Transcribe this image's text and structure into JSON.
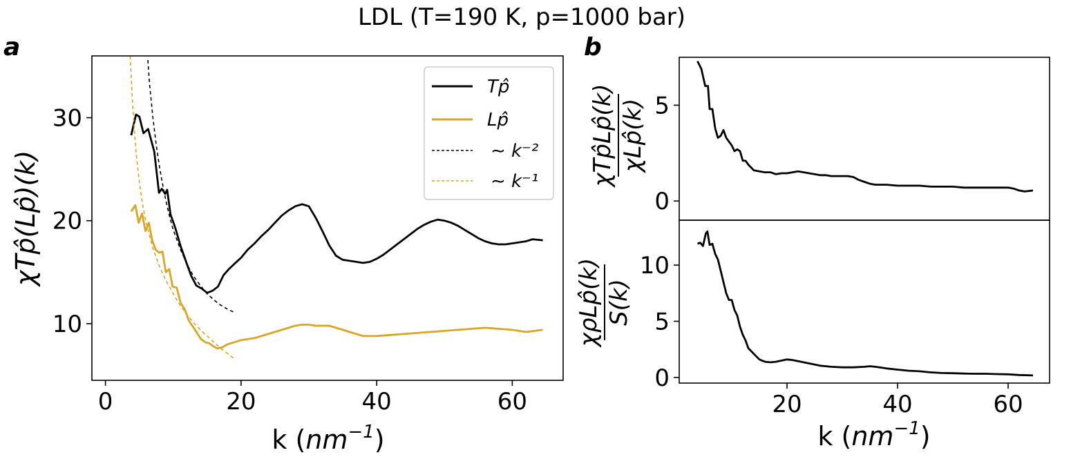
{
  "colors": {
    "black": "#000000",
    "gold": "#DAA520",
    "frame": "#000000"
  },
  "chart_data": [
    {
      "id": "a",
      "type": "line",
      "title": "LDL (T=190 K, p=1000 bar)",
      "panel_label": "a",
      "xlabel": "k (nm⁻¹)",
      "xlabel_main": "k (",
      "xlabel_unit": "nm",
      "xlabel_exp": "−1",
      "xlabel_close": ")",
      "ylabel": "χTp̂(Lp̂)(k)",
      "xlim": [
        -2,
        67.5
      ],
      "ylim": [
        4.5,
        36
      ],
      "xticks": [
        0,
        20,
        40,
        60
      ],
      "yticks": [
        10,
        20,
        30
      ],
      "xtick_labels": [
        "0",
        "20",
        "40",
        "60"
      ],
      "ytick_labels": [
        "10",
        "20",
        "30"
      ],
      "legend": {
        "position": "upper right",
        "entries": [
          {
            "label": "Tp̂",
            "series": "Tp"
          },
          {
            "label": "Lp̂",
            "series": "Lp"
          },
          {
            "label": "∼ k⁻²",
            "series": "fit_k2"
          },
          {
            "label": "∼ k⁻¹",
            "series": "fit_k1"
          }
        ]
      },
      "series": [
        {
          "name": "Tp̂",
          "key": "Tp",
          "color": "#000000",
          "style": "solid",
          "x": [
            3.8,
            4.5,
            5.0,
            5.6,
            6.3,
            7.2,
            7.9,
            8.3,
            8.8,
            9.1,
            9.6,
            10.3,
            11.1,
            11.9,
            12.6,
            13.4,
            14.2,
            15.0,
            15.8,
            16.6,
            17.4,
            18.2,
            19.0,
            20.0,
            21.0,
            22.0,
            23.0,
            24.0,
            25.0,
            26.0,
            27.0,
            28.0,
            29.0,
            30.0,
            31.0,
            32.0,
            33.0,
            34.0,
            35.0,
            36.0,
            37.0,
            38.0,
            39.0,
            40.0,
            41.0,
            42.0,
            43.0,
            44.0,
            45.0,
            46.0,
            47.0,
            48.0,
            49.0,
            50.0,
            51.0,
            52.0,
            53.0,
            54.0,
            55.0,
            56.0,
            57.0,
            58.0,
            59.0,
            60.0,
            61.0,
            62.0,
            63.0,
            64.5
          ],
          "y": [
            28.3,
            30.3,
            30.1,
            28.5,
            28.9,
            26.7,
            22.7,
            23.1,
            22.6,
            23.0,
            20.6,
            19.3,
            17.5,
            16.0,
            14.7,
            13.7,
            13.4,
            13.0,
            13.2,
            13.6,
            14.7,
            15.3,
            15.8,
            16.4,
            17.2,
            17.8,
            18.5,
            19.1,
            19.8,
            20.5,
            21.0,
            21.4,
            21.6,
            21.4,
            20.3,
            19.0,
            17.6,
            16.6,
            16.2,
            16.1,
            16.0,
            15.9,
            16.0,
            16.3,
            16.7,
            17.2,
            17.7,
            18.2,
            18.7,
            19.2,
            19.6,
            19.9,
            20.1,
            20.0,
            19.8,
            19.5,
            19.1,
            18.7,
            18.3,
            18.0,
            17.8,
            17.7,
            17.7,
            17.8,
            17.9,
            18.0,
            18.2,
            18.1
          ]
        },
        {
          "name": "Lp̂",
          "key": "Lp",
          "color": "#DAA520",
          "style": "solid",
          "x": [
            3.8,
            4.4,
            4.9,
            5.4,
            5.9,
            6.4,
            6.9,
            7.4,
            7.9,
            8.4,
            8.9,
            9.4,
            9.9,
            10.5,
            11.1,
            11.7,
            12.3,
            12.9,
            13.5,
            14.1,
            14.7,
            15.3,
            15.9,
            16.5,
            17.2,
            18.0,
            19.0,
            20.0,
            21.0,
            22.0,
            23.0,
            24.0,
            25.0,
            26.0,
            27.0,
            28.0,
            29.0,
            30.0,
            31.0,
            32.0,
            33.0,
            34.0,
            35.0,
            36.0,
            37.0,
            38.0,
            39.0,
            40.0,
            42.0,
            44.0,
            46.0,
            48.0,
            50.0,
            52.0,
            54.0,
            56.0,
            58.0,
            60.0,
            62.0,
            64.5
          ],
          "y": [
            20.9,
            21.5,
            19.8,
            20.7,
            19.0,
            19.8,
            18.1,
            17.2,
            16.9,
            17.0,
            15.0,
            15.3,
            13.6,
            13.5,
            12.0,
            11.4,
            10.3,
            9.7,
            9.1,
            8.5,
            8.2,
            8.1,
            7.8,
            7.6,
            7.7,
            8.0,
            8.2,
            8.4,
            8.5,
            8.6,
            8.8,
            9.0,
            9.2,
            9.4,
            9.6,
            9.8,
            9.9,
            9.9,
            9.8,
            9.8,
            9.8,
            9.6,
            9.4,
            9.2,
            9.0,
            8.8,
            8.8,
            8.8,
            8.9,
            9.0,
            9.1,
            9.2,
            9.3,
            9.4,
            9.5,
            9.6,
            9.5,
            9.4,
            9.2,
            9.4
          ]
        },
        {
          "name": "∼ k⁻²",
          "key": "fit_k2",
          "color": "#000000",
          "style": "dashed",
          "x": [
            6.25,
            6.5,
            7.0,
            7.5,
            8.0,
            8.5,
            9.0,
            9.5,
            10.0,
            11.0,
            12.0,
            13.0,
            14.0,
            15.0,
            16.0,
            17.0,
            18.0,
            19.0
          ],
          "y": [
            35.6,
            33.3,
            30.0,
            27.3,
            25.1,
            23.3,
            21.7,
            20.3,
            19.1,
            17.3,
            15.8,
            14.6,
            13.7,
            12.9,
            12.3,
            11.8,
            11.4,
            11.1
          ]
        },
        {
          "name": "∼ k⁻¹",
          "key": "fit_k1",
          "color": "#DAA520",
          "style": "dashed",
          "x": [
            3.65,
            4.0,
            4.5,
            5.0,
            5.5,
            6.0,
            7.0,
            8.0,
            9.0,
            10.0,
            11.0,
            12.0,
            13.0,
            14.0,
            15.0,
            16.0,
            17.0,
            18.0,
            19.0
          ],
          "y": [
            36.0,
            31.3,
            26.7,
            23.7,
            21.5,
            19.8,
            17.3,
            15.5,
            14.1,
            12.9,
            11.8,
            10.9,
            10.1,
            9.4,
            8.8,
            8.2,
            7.6,
            7.1,
            6.6
          ]
        }
      ]
    },
    {
      "id": "b_top",
      "type": "line",
      "panel_label": "b",
      "ylabel_num": "χTp̂Lp̂(k)",
      "ylabel_den": "χLp̂(k)",
      "xlim": [
        0.5,
        67.5
      ],
      "ylim": [
        -1.0,
        7.5
      ],
      "yticks": [
        0,
        5
      ],
      "ytick_labels": [
        "0",
        "5"
      ],
      "series": [
        {
          "name": "ratio_Tp_Lp",
          "color": "#000000",
          "style": "solid",
          "x": [
            3.8,
            4.5,
            5.2,
            5.7,
            6.0,
            6.5,
            7.0,
            7.5,
            8.0,
            8.5,
            9.0,
            9.5,
            10.0,
            10.5,
            11.0,
            11.5,
            12.0,
            12.5,
            13.0,
            14.0,
            15.0,
            16.0,
            17.0,
            18.0,
            19.0,
            20.0,
            21.0,
            22.0,
            23.0,
            24.0,
            25.0,
            26.0,
            27.0,
            28.0,
            29.0,
            30.0,
            31.0,
            32.0,
            33.0,
            34.0,
            35.0,
            36.0,
            37.0,
            38.0,
            40.0,
            42.0,
            44.0,
            46.0,
            48.0,
            50.0,
            52.0,
            54.0,
            56.0,
            58.0,
            60.0,
            61.0,
            62.0,
            63.0,
            64.5
          ],
          "y": [
            7.3,
            6.9,
            6.0,
            6.0,
            4.8,
            4.8,
            3.8,
            3.3,
            3.4,
            3.7,
            3.3,
            3.1,
            2.9,
            2.6,
            2.7,
            2.6,
            2.1,
            2.1,
            1.9,
            1.6,
            1.55,
            1.5,
            1.5,
            1.4,
            1.45,
            1.45,
            1.5,
            1.55,
            1.5,
            1.45,
            1.4,
            1.35,
            1.35,
            1.3,
            1.3,
            1.3,
            1.3,
            1.25,
            1.1,
            1.0,
            0.9,
            0.85,
            0.85,
            0.85,
            0.8,
            0.8,
            0.8,
            0.75,
            0.75,
            0.75,
            0.7,
            0.7,
            0.7,
            0.7,
            0.7,
            0.65,
            0.55,
            0.5,
            0.55
          ]
        }
      ]
    },
    {
      "id": "b_bottom",
      "type": "line",
      "xlabel": "k (nm⁻¹)",
      "xlabel_main": "k (",
      "xlabel_unit": "nm",
      "xlabel_exp": "−1",
      "xlabel_close": ")",
      "ylabel_num": "χρLp̂(k)",
      "ylabel_den": "S(k)",
      "xlim": [
        0.5,
        67.5
      ],
      "ylim": [
        -0.5,
        14.0
      ],
      "xticks": [
        20,
        40,
        60
      ],
      "xtick_labels": [
        "20",
        "40",
        "60"
      ],
      "yticks": [
        0,
        5,
        10
      ],
      "ytick_labels": [
        "0",
        "5",
        "10"
      ],
      "series": [
        {
          "name": "ratio_rho_Lp",
          "color": "#000000",
          "style": "solid",
          "x": [
            3.8,
            4.3,
            4.8,
            5.3,
            5.6,
            6.0,
            6.5,
            7.0,
            7.5,
            8.0,
            8.5,
            9.0,
            9.5,
            10.0,
            10.5,
            11.0,
            11.5,
            12.0,
            12.5,
            13.0,
            14.0,
            15.0,
            16.0,
            17.0,
            18.0,
            19.0,
            20.0,
            21.0,
            22.0,
            24.0,
            26.0,
            28.0,
            30.0,
            32.0,
            34.0,
            35.0,
            36.0,
            38.0,
            40.0,
            42.0,
            44.0,
            46.0,
            48.0,
            50.0,
            52.0,
            54.0,
            56.0,
            58.0,
            60.0,
            62.0,
            64.5
          ],
          "y": [
            11.9,
            12.0,
            11.7,
            12.8,
            13.0,
            11.8,
            11.9,
            11.0,
            10.5,
            9.5,
            8.5,
            7.5,
            6.9,
            6.9,
            6.0,
            5.5,
            4.5,
            3.8,
            3.3,
            2.6,
            2.1,
            1.6,
            1.4,
            1.35,
            1.4,
            1.5,
            1.6,
            1.55,
            1.45,
            1.25,
            1.05,
            0.95,
            0.9,
            0.9,
            0.95,
            1.0,
            0.95,
            0.8,
            0.7,
            0.6,
            0.55,
            0.45,
            0.4,
            0.38,
            0.35,
            0.33,
            0.33,
            0.3,
            0.28,
            0.22,
            0.18
          ]
        }
      ]
    }
  ]
}
